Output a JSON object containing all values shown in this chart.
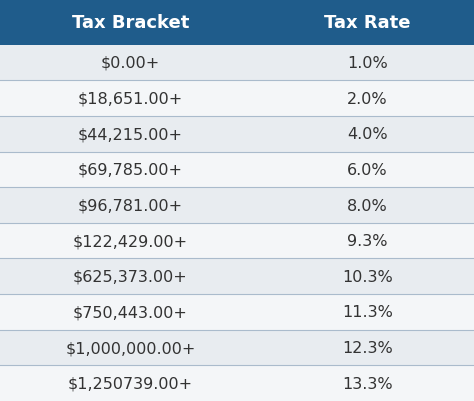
{
  "col_headers": [
    "Tax Bracket",
    "Tax Rate"
  ],
  "rows": [
    [
      "$0.00+",
      "1.0%"
    ],
    [
      "$18,651.00+",
      "2.0%"
    ],
    [
      "$44,215.00+",
      "4.0%"
    ],
    [
      "$69,785.00+",
      "6.0%"
    ],
    [
      "$96,781.00+",
      "8.0%"
    ],
    [
      "$122,429.00+",
      "9.3%"
    ],
    [
      "$625,373.00+",
      "10.3%"
    ],
    [
      "$750,443.00+",
      "11.3%"
    ],
    [
      "$1,000,000.00+",
      "12.3%"
    ],
    [
      "$1,250739.00+",
      "13.3%"
    ]
  ],
  "header_bg_color": "#1F5C8B",
  "header_text_color": "#FFFFFF",
  "row_bg_even": "#E8ECF0",
  "row_bg_odd": "#F4F6F8",
  "row_text_color": "#333333",
  "divider_color": "#AABBCC",
  "header_fontsize": 13,
  "cell_fontsize": 11.5,
  "fig_bg_color": "#E8ECF0"
}
